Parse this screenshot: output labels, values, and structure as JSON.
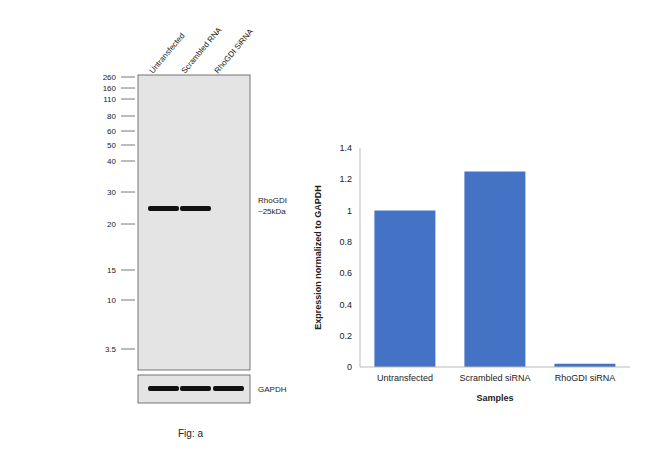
{
  "chart_data": {
    "type": "bar",
    "categories": [
      "Untransfected",
      "Scrambled siRNA",
      "RhoGDI siRNA"
    ],
    "values": [
      1.0,
      1.25,
      0.02
    ],
    "color": "#4472c4",
    "ylim": [
      0,
      1.4
    ],
    "yticks": [
      0,
      0.2,
      0.4,
      0.6,
      0.8,
      1,
      1.2,
      1.4
    ],
    "x_label": "Samples",
    "y_label": "Expression normalized to GAPDH",
    "grid": false
  },
  "blot": {
    "lanes": [
      {
        "label": "Untransfected",
        "band": true
      },
      {
        "label": "Scrambled RNA",
        "band": true
      },
      {
        "label": "RhoGDI SiRNA",
        "band": false
      }
    ],
    "markers": [
      260,
      160,
      110,
      80,
      60,
      50,
      40,
      30,
      20,
      15,
      10,
      3.5
    ],
    "band_label": [
      "RhoGDI",
      "~25kDa"
    ],
    "loading_control": "GAPDH",
    "figure_label": "Fig: a"
  }
}
